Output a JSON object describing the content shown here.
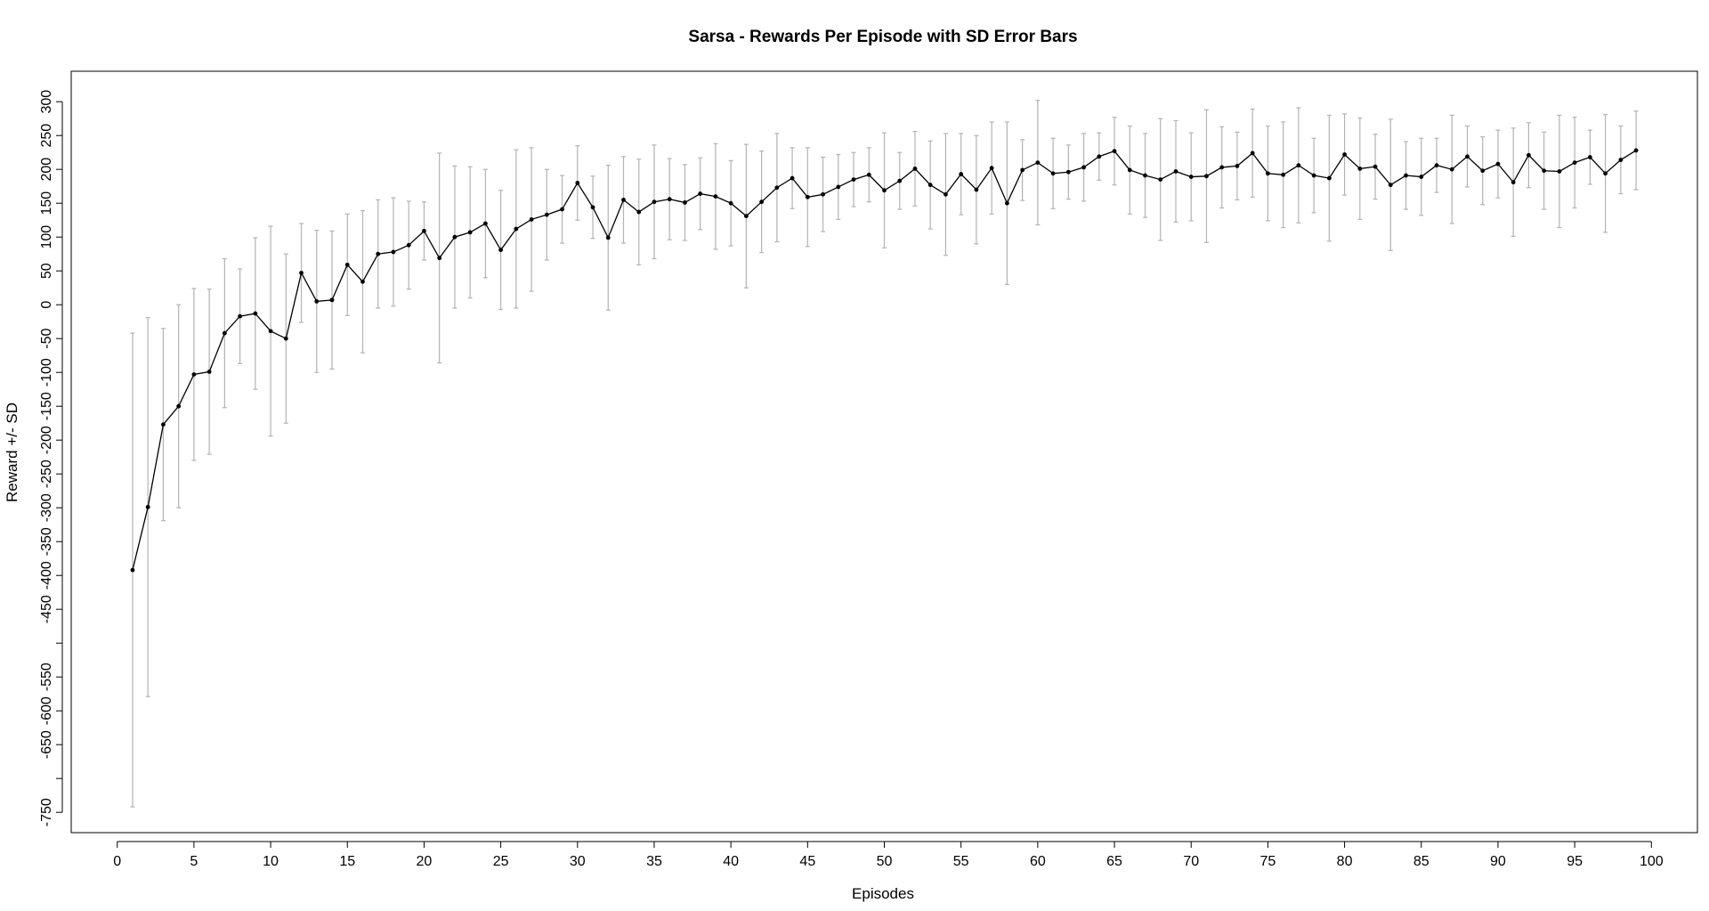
{
  "chart_data": {
    "type": "line",
    "title": "Sarsa - Rewards Per Episode with SD Error Bars",
    "xlabel": "Episodes",
    "ylabel": "Reward +/- SD",
    "xlim": [
      -3,
      103
    ],
    "ylim": [
      -780,
      345
    ],
    "x_ticks": [
      0,
      5,
      10,
      15,
      20,
      25,
      30,
      35,
      40,
      45,
      50,
      55,
      60,
      65,
      70,
      75,
      80,
      85,
      90,
      95,
      100
    ],
    "x_tick_labels": [
      "0",
      "5",
      "10",
      "15",
      "20",
      "25",
      "30",
      "35",
      "40",
      "45",
      "50",
      "55",
      "60",
      "65",
      "70",
      "75",
      "80",
      "85",
      "90",
      "95",
      "100"
    ],
    "y_ticks": [
      -750,
      -700,
      -650,
      -600,
      -550,
      -500,
      -450,
      -400,
      -350,
      -300,
      -250,
      -200,
      -150,
      -100,
      -50,
      0,
      50,
      100,
      150,
      200,
      250,
      300
    ],
    "y_tick_labels": [
      "-750",
      "",
      "-650",
      "-600",
      "-550",
      "",
      "-450",
      "-400",
      "-350",
      "-300",
      "-250",
      "-200",
      "-150",
      "-100",
      "-50",
      "0",
      "50",
      "100",
      "150",
      "200",
      "250",
      "300"
    ],
    "grid": false,
    "legend": "none",
    "colors": {
      "line": "#000000",
      "points": "#000000",
      "error_bars": "#b3b3b3",
      "frame": "#000000"
    },
    "series": [
      {
        "x": [
          1,
          2,
          3,
          4,
          5,
          6,
          7,
          8,
          9,
          10,
          11,
          12,
          13,
          14,
          15,
          16,
          17,
          18,
          19,
          20,
          21,
          22,
          23,
          24,
          25,
          26,
          27,
          28,
          29,
          30,
          31,
          32,
          33,
          34,
          35,
          36,
          37,
          38,
          39,
          40,
          41,
          42,
          43,
          44,
          45,
          46,
          47,
          48,
          49,
          50,
          51,
          52,
          53,
          54,
          55,
          56,
          57,
          58,
          59,
          60,
          61,
          62,
          63,
          64,
          65,
          66,
          67,
          68,
          69,
          70,
          71,
          72,
          73,
          74,
          75,
          76,
          77,
          78,
          79,
          80,
          81,
          82,
          83,
          84,
          85,
          86,
          87,
          88,
          89,
          90,
          91,
          92,
          93,
          94,
          95,
          96,
          97,
          98,
          99
        ],
        "values": [
          -392,
          -299,
          -177,
          -150,
          -103,
          -99,
          -42,
          -17,
          -13,
          -39,
          -50,
          47,
          5,
          7,
          59,
          34,
          75,
          78,
          88,
          109,
          69,
          100,
          107,
          120,
          81,
          112,
          126,
          133,
          141,
          180,
          144,
          99,
          155,
          137,
          152,
          156,
          151,
          164,
          160,
          150,
          131,
          152,
          173,
          187,
          159,
          163,
          174,
          185,
          192,
          169,
          183,
          201,
          177,
          163,
          193,
          170,
          202,
          150,
          199,
          210,
          194,
          196,
          203,
          219,
          227,
          199,
          191,
          185,
          197,
          189,
          190,
          203,
          205,
          224,
          194,
          192,
          206,
          191,
          187,
          222,
          201,
          204,
          177,
          191,
          189,
          206,
          200,
          219,
          198,
          208,
          181,
          221,
          198,
          197,
          210,
          218,
          194,
          214,
          228
        ],
        "sd": [
          350,
          280,
          142,
          150,
          127,
          122,
          110,
          70,
          112,
          155,
          125,
          73,
          105,
          102,
          75,
          105,
          80,
          80,
          65,
          43,
          155,
          105,
          97,
          80,
          88,
          117,
          106,
          67,
          50,
          55,
          46,
          107,
          64,
          78,
          84,
          60,
          56,
          53,
          78,
          63,
          106,
          75,
          80,
          45,
          73,
          55,
          48,
          40,
          40,
          85,
          42,
          55,
          65,
          90,
          60,
          80,
          68,
          120,
          45,
          92,
          52,
          40,
          50,
          35,
          50,
          65,
          62,
          90,
          75,
          65,
          98,
          60,
          50,
          65,
          70,
          78,
          85,
          55,
          93,
          60,
          75,
          48,
          97,
          50,
          57,
          40,
          80,
          45,
          50,
          50,
          80,
          48,
          57,
          83,
          67,
          40,
          87,
          50,
          58
        ]
      }
    ]
  }
}
